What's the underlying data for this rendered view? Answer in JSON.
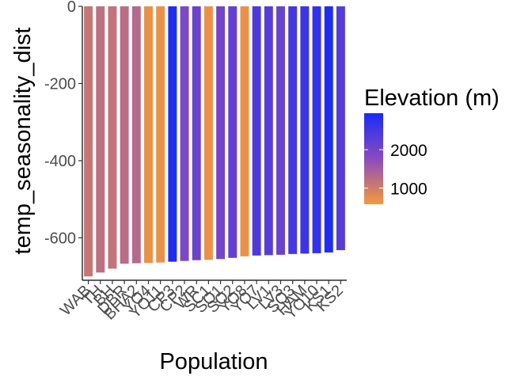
{
  "chart_data": {
    "type": "bar",
    "xlabel": "Population",
    "ylabel": "temp_seasonality_dist",
    "ylim": [
      -710,
      0
    ],
    "yticks": [
      0,
      -200,
      -400,
      -600
    ],
    "categories": [
      "WAB",
      "TH",
      "BH",
      "DBR",
      "BHA2",
      "YO4",
      "YO11",
      "CP3",
      "CP2",
      "WR",
      "SC1",
      "SQ1",
      "SQ2",
      "YO8",
      "YO7",
      "LV1",
      "LV3",
      "SQ3",
      "HAM",
      "YO10",
      "KS1",
      "KS2"
    ],
    "values": [
      -700,
      -690,
      -680,
      -667,
      -666,
      -665,
      -664,
      -662,
      -660,
      -658,
      -657,
      -655,
      -652,
      -648,
      -646,
      -645,
      -644,
      -642,
      -641,
      -640,
      -638,
      -632
    ],
    "series": [
      {
        "name": "Elevation (m)",
        "elevation": [
          1100,
          1200,
          1150,
          1250,
          1300,
          700,
          700,
          2900,
          1900,
          2100,
          700,
          2000,
          2200,
          700,
          2400,
          2300,
          2100,
          2500,
          2600,
          2700,
          2900,
          2300
        ]
      }
    ],
    "legend": {
      "title": "Elevation (m)",
      "position": "right",
      "breaks": [
        2000,
        1000
      ],
      "range": [
        580,
        2950
      ],
      "low_color": "#f5993c",
      "mid_color": "#8a4bbf",
      "high_color": "#1a2cf5"
    },
    "grid": false
  }
}
